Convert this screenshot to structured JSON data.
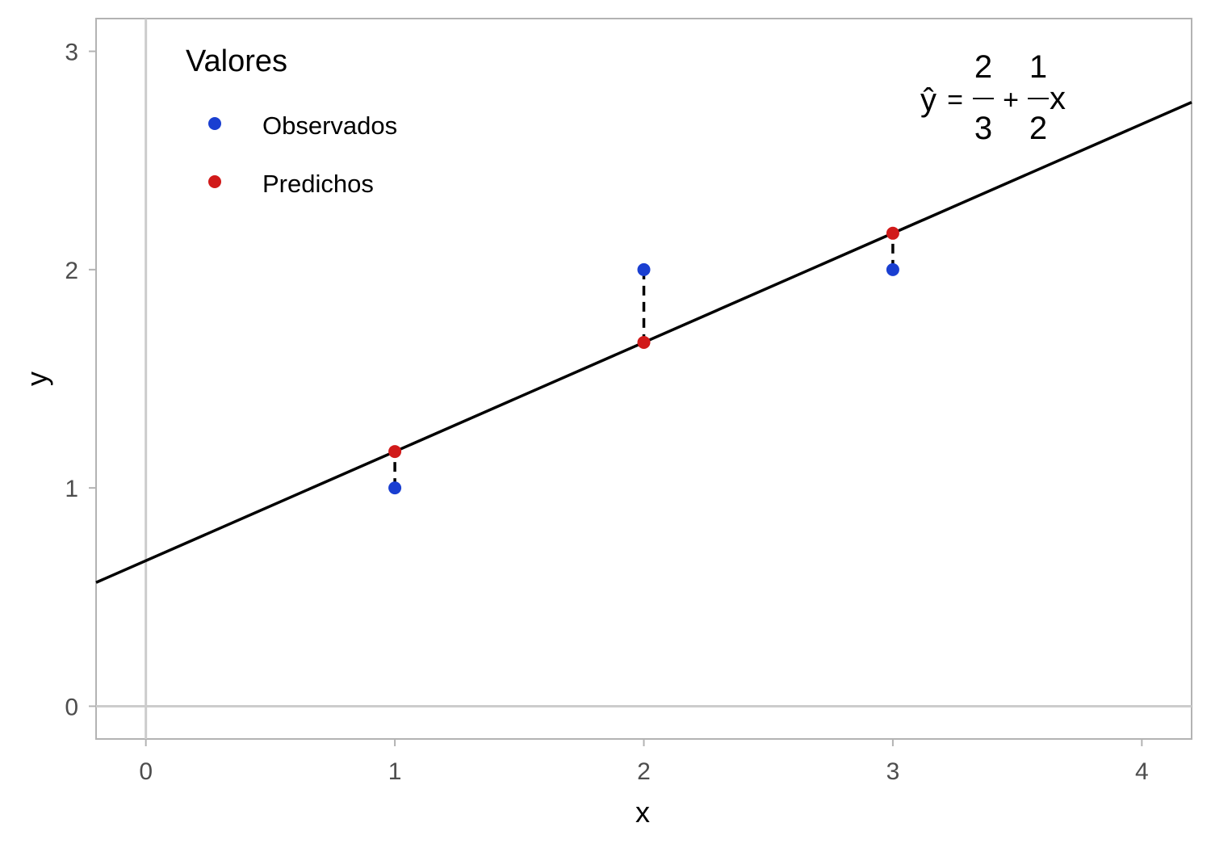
{
  "chart_data": {
    "type": "scatter",
    "xlabel": "x",
    "ylabel": "y",
    "xlim": [
      -0.2,
      4.2
    ],
    "ylim": [
      -0.15,
      3.15
    ],
    "x_ticks": [
      "0",
      "1",
      "2",
      "3",
      "4"
    ],
    "y_ticks": [
      "0",
      "1",
      "2",
      "3"
    ],
    "grid": false,
    "reference_lines": {
      "x": 0,
      "y": 0
    },
    "legend": {
      "title": "Valores",
      "position": "top-left",
      "entries": [
        "Observados",
        "Predichos"
      ]
    },
    "series": [
      {
        "name": "Observados",
        "color": "#1a3fd1",
        "x": [
          1,
          2,
          3
        ],
        "y": [
          1,
          2,
          2
        ]
      },
      {
        "name": "Predichos",
        "color": "#d11a1a",
        "x": [
          1,
          2,
          3
        ],
        "y": [
          1.1667,
          1.6667,
          2.1667
        ]
      }
    ],
    "regression_line": {
      "intercept": 0.6667,
      "slope": 0.5,
      "color": "#000000"
    },
    "residual_segments": "dashed vertical lines between observed and predicted values",
    "equation": {
      "position": "top-right",
      "lhs": "ŷ",
      "equals": "=",
      "intercept_numerator": "2",
      "intercept_denominator": "3",
      "plus": "+",
      "slope_numerator": "1",
      "slope_denominator": "2",
      "variable": "x"
    }
  }
}
